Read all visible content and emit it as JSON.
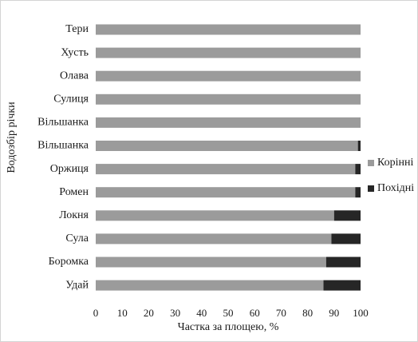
{
  "chart_data": {
    "type": "bar",
    "orientation": "horizontal",
    "stacked": true,
    "title": "",
    "xlabel": "Частка за площею, %",
    "ylabel": "Водозбір річки",
    "xlim": [
      0,
      100
    ],
    "xticks": [
      0,
      10,
      20,
      30,
      40,
      50,
      60,
      70,
      80,
      90,
      100
    ],
    "grid": false,
    "legend_position": "right",
    "categories": [
      "Тери",
      "Хусть",
      "Олава",
      "Сулиця",
      "Вільшанка",
      "Вільшанка",
      "Оржиця",
      "Ромен",
      "Локня",
      "Сула",
      "Боромка",
      "Удай"
    ],
    "series": [
      {
        "name": "Корінні",
        "color": "#9b9b9b",
        "values": [
          100,
          100,
          100,
          100,
          100,
          99,
          98,
          98,
          90,
          89,
          87,
          86
        ]
      },
      {
        "name": "Похідні",
        "color": "#262626",
        "values": [
          0,
          0,
          0,
          0,
          0,
          1,
          2,
          2,
          10,
          11,
          13,
          14
        ]
      }
    ]
  }
}
